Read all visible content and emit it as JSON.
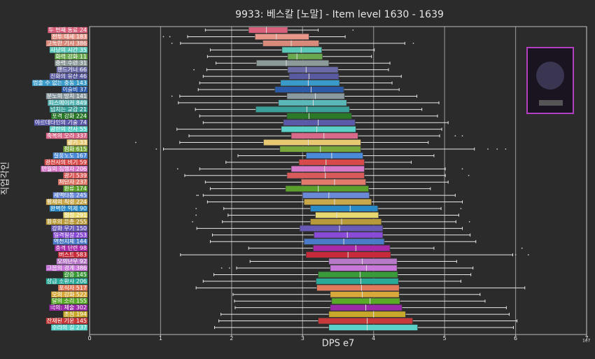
{
  "chart_data": {
    "type": "box",
    "orientation": "horizontal",
    "title": "9933: 베스칼 [노말] - Item level 1630 - 1639",
    "xlabel": "DPS e7",
    "ylabel": "직업각인",
    "offset_label": "1e7",
    "xlim": [
      0,
      7
    ],
    "xticks": [
      0,
      1,
      2,
      3,
      4,
      5,
      6,
      7
    ],
    "grid": true,
    "boxes": [
      {
        "label": "두 번째 동료 24",
        "color": "#d9607a",
        "whisker_low": 1.63,
        "q1": 2.24,
        "median": 2.49,
        "q3": 2.79,
        "whisker_high": 3.22,
        "outliers": [
          3.71
        ]
      },
      {
        "label": "전투 태세 183",
        "color": "#e8968a",
        "whisker_low": 1.38,
        "q1": 2.33,
        "median": 2.63,
        "q3": 3.09,
        "whisker_high": 3.6,
        "outliers": [
          1.04,
          1.13
        ]
      },
      {
        "label": "고독한 기사 386",
        "color": "#d98a7a",
        "whisker_low": 1.28,
        "q1": 2.44,
        "median": 2.84,
        "q3": 3.23,
        "whisker_high": 4.44,
        "outliers": [
          1.16,
          4.56
        ]
      },
      {
        "label": "사냥의 시간 35",
        "color": "#5cc8b8",
        "whisker_low": 1.7,
        "q1": 2.71,
        "median": 2.98,
        "q3": 3.27,
        "whisker_high": 4.01,
        "outliers": []
      },
      {
        "label": "화력 강화 11",
        "color": "#6aa84f",
        "whisker_low": 1.66,
        "q1": 2.79,
        "median": 2.92,
        "q3": 3.28,
        "whisker_high": 3.97,
        "outliers": []
      },
      {
        "label": "중력 수련 31",
        "color": "#8c9a9a",
        "whisker_low": 1.78,
        "q1": 2.35,
        "median": 2.77,
        "q3": 3.37,
        "whisker_high": 4.23,
        "outliers": []
      },
      {
        "label": "핸드거너 66",
        "color": "#6a6aa8",
        "whisker_low": 1.65,
        "q1": 2.79,
        "median": 3.05,
        "q3": 3.5,
        "whisker_high": 4.21,
        "outliers": [
          1.47
        ]
      },
      {
        "label": "진화의 유산 46",
        "color": "#5a5aa0",
        "whisker_low": 1.6,
        "q1": 2.81,
        "median": 3.09,
        "q3": 3.51,
        "whisker_high": 4.39,
        "outliers": []
      },
      {
        "label": "멈출 수 없는 충동 143",
        "color": "#3a9ac9",
        "whisker_low": 1.55,
        "q1": 2.69,
        "median": 3.08,
        "q3": 3.52,
        "whisker_high": 4.26,
        "outliers": []
      },
      {
        "label": "이슬비 37",
        "color": "#2a5aa8",
        "whisker_low": 1.53,
        "q1": 2.61,
        "median": 3.12,
        "q3": 3.58,
        "whisker_high": 4.36,
        "outliers": []
      },
      {
        "label": "분노의 망치 141",
        "color": "#8a9aa0",
        "whisker_low": 1.27,
        "q1": 2.78,
        "median": 3.18,
        "q3": 3.59,
        "whisker_high": 4.61,
        "outliers": [
          1.16
        ]
      },
      {
        "label": "피스메이커 849",
        "color": "#5ab8b8",
        "whisker_low": 1.25,
        "q1": 2.66,
        "median": 3.15,
        "q3": 3.62,
        "whisker_high": 4.92,
        "outliers": []
      },
      {
        "label": "넘치는 교감 21",
        "color": "#3aa09a",
        "whisker_low": 1.49,
        "q1": 2.34,
        "median": 3.06,
        "q3": 3.66,
        "whisker_high": 4.68,
        "outliers": []
      },
      {
        "label": "포격 강화 224",
        "color": "#2a7a2a",
        "whisker_low": 1.55,
        "q1": 2.78,
        "median": 3.09,
        "q3": 3.69,
        "whisker_high": 4.9,
        "outliers": []
      },
      {
        "label": "아르데타인의 기술 74",
        "color": "#5a5aa8",
        "whisker_low": 1.6,
        "q1": 2.73,
        "median": 3.22,
        "q3": 3.74,
        "whisker_high": 5.05,
        "outliers": []
      },
      {
        "label": "광란의 전사 55",
        "color": "#5ad0c8",
        "whisker_low": 1.23,
        "q1": 2.7,
        "median": 3.2,
        "q3": 3.75,
        "whisker_high": 4.96,
        "outliers": []
      },
      {
        "label": "축복의 오라 337",
        "color": "#d96a8a",
        "whisker_low": 1.4,
        "q1": 2.84,
        "median": 3.3,
        "q3": 3.78,
        "whisker_high": 4.93,
        "outliers": [
          5.15,
          5.25
        ]
      },
      {
        "label": "광기 33",
        "color": "#e8c870",
        "whisker_low": 1.27,
        "q1": 2.45,
        "median": 3.08,
        "q3": 3.82,
        "whisker_high": 4.77,
        "outliers": [
          0.65
        ]
      },
      {
        "label": "점화 615",
        "color": "#7aa83a",
        "whisker_low": 1.04,
        "q1": 2.68,
        "median": 3.25,
        "q3": 3.82,
        "whisker_high": 5.42,
        "outliers": [
          0.94,
          5.61,
          5.74,
          5.86
        ]
      },
      {
        "label": "질풍노도 167",
        "color": "#4a8ad8",
        "whisker_low": 2.09,
        "q1": 3.05,
        "median": 3.41,
        "q3": 3.85,
        "whisker_high": 4.85,
        "outliers": []
      },
      {
        "label": "광전사의 비기 59",
        "color": "#d84a4a",
        "whisker_low": 1.92,
        "q1": 2.95,
        "median": 3.33,
        "q3": 3.87,
        "whisker_high": 4.53,
        "outliers": []
      },
      {
        "label": "만월의 집행자 206",
        "color": "#d878c8",
        "whisker_low": 1.55,
        "q1": 2.84,
        "median": 3.31,
        "q3": 3.87,
        "whisker_high": 5.01,
        "outliers": [
          1.24,
          5.25
        ]
      },
      {
        "label": "광기 539",
        "color": "#d85a5a",
        "whisker_low": 1.34,
        "q1": 2.78,
        "median": 3.32,
        "q3": 3.87,
        "whisker_high": 5.01,
        "outliers": [
          5.34
        ]
      },
      {
        "label": "처단자 237",
        "color": "#e07a6a",
        "whisker_low": 1.63,
        "q1": 2.98,
        "median": 3.45,
        "q3": 3.89,
        "whisker_high": 5.05,
        "outliers": []
      },
      {
        "label": "환류 174",
        "color": "#5aa02a",
        "whisker_low": 1.7,
        "q1": 2.76,
        "median": 3.22,
        "q3": 3.93,
        "whisker_high": 4.8,
        "outliers": []
      },
      {
        "label": "세맥타통 245",
        "color": "#6a8ad8",
        "whisker_low": 1.6,
        "q1": 3.0,
        "median": 3.37,
        "q3": 3.94,
        "whisker_high": 5.15,
        "outliers": [
          1.51,
          1.53
        ]
      },
      {
        "label": "황제의 칙령 224",
        "color": "#c8a84a",
        "whisker_low": 1.66,
        "q1": 3.02,
        "median": 3.45,
        "q3": 3.97,
        "whisker_high": 5.25,
        "outliers": []
      },
      {
        "label": "완벽한 억제 90",
        "color": "#2a8ac8",
        "whisker_low": 1.89,
        "q1": 3.11,
        "median": 3.67,
        "q3": 4.06,
        "whisker_high": 4.95,
        "outliers": [
          1.5,
          5.23
        ]
      },
      {
        "label": "절정 291",
        "color": "#e8d870",
        "whisker_low": 1.95,
        "q1": 3.18,
        "median": 3.48,
        "q3": 4.07,
        "whisker_high": 5.2,
        "outliers": [
          1.5
        ]
      },
      {
        "label": "황후의 은총 255",
        "color": "#b89a3a",
        "whisker_low": 1.87,
        "q1": 3.11,
        "median": 3.55,
        "q3": 4.11,
        "whisker_high": 5.16,
        "outliers": [
          1.45,
          5.35
        ]
      },
      {
        "label": "강화 무기 150",
        "color": "#6a5ab8",
        "whisker_low": 1.51,
        "q1": 2.96,
        "median": 3.52,
        "q3": 4.13,
        "whisker_high": 5.25,
        "outliers": []
      },
      {
        "label": "일격필살 253",
        "color": "#8a4ad8",
        "whisker_low": 1.73,
        "q1": 3.16,
        "median": 3.63,
        "q3": 4.13,
        "whisker_high": 5.36,
        "outliers": []
      },
      {
        "label": "역천지체 144",
        "color": "#4a7ac8",
        "whisker_low": 1.7,
        "q1": 3.02,
        "median": 3.58,
        "q3": 4.15,
        "whisker_high": 5.44,
        "outliers": []
      },
      {
        "label": "충격 단련 98",
        "color": "#a82aa8",
        "whisker_low": 2.24,
        "q1": 3.15,
        "median": 3.75,
        "q3": 4.23,
        "whisker_high": 4.85,
        "outliers": [
          6.09
        ]
      },
      {
        "label": "버스트 583",
        "color": "#c82a3a",
        "whisker_low": 1.28,
        "q1": 3.05,
        "median": 3.64,
        "q3": 4.24,
        "whisker_high": 5.96,
        "outliers": [
          6.0,
          6.18
        ]
      },
      {
        "label": "오의난무 92",
        "color": "#b87ac8",
        "whisker_low": 2.26,
        "q1": 3.37,
        "median": 3.84,
        "q3": 4.33,
        "whisker_high": 5.17,
        "outliers": []
      },
      {
        "label": "그믐의 경계 386",
        "color": "#c878d8",
        "whisker_low": 2.07,
        "q1": 3.39,
        "median": 3.9,
        "q3": 4.33,
        "whisker_high": 5.4,
        "outliers": [
          1.86,
          1.97
        ]
      },
      {
        "label": "갈증 145",
        "color": "#3a9a3a",
        "whisker_low": 1.75,
        "q1": 3.22,
        "median": 3.81,
        "q3": 4.34,
        "whisker_high": 5.37,
        "outliers": []
      },
      {
        "label": "상급 소환사 206",
        "color": "#2aa898",
        "whisker_low": 1.6,
        "q1": 3.19,
        "median": 3.82,
        "q3": 4.35,
        "whisker_high": 5.23,
        "outliers": []
      },
      {
        "label": "포식자 517",
        "color": "#e07a5a",
        "whisker_low": 1.5,
        "q1": 3.2,
        "median": 3.83,
        "q3": 4.36,
        "whisker_high": 6.13,
        "outliers": []
      },
      {
        "label": "오의 강화 522",
        "color": "#d8a83a",
        "whisker_low": 2.02,
        "q1": 3.39,
        "median": 3.84,
        "q3": 4.36,
        "whisker_high": 5.5,
        "outliers": []
      },
      {
        "label": "달의 소리 155",
        "color": "#5aaa2a",
        "whisker_low": 2.04,
        "q1": 3.41,
        "median": 3.95,
        "q3": 4.37,
        "whisker_high": 5.57,
        "outliers": []
      },
      {
        "label": "극의: 체술 302",
        "color": "#9a2aa8",
        "whisker_low": 2.05,
        "q1": 3.39,
        "median": 3.89,
        "q3": 4.4,
        "whisker_high": 5.87,
        "outliers": []
      },
      {
        "label": "초심 194",
        "color": "#c8a82a",
        "whisker_low": 1.85,
        "q1": 3.37,
        "median": 4.0,
        "q3": 4.45,
        "whisker_high": 5.91,
        "outliers": []
      },
      {
        "label": "잔재된 기운 145",
        "color": "#c83a3a",
        "whisker_low": 1.82,
        "q1": 3.22,
        "median": 3.91,
        "q3": 4.55,
        "whisker_high": 6.02,
        "outliers": []
      },
      {
        "label": "수라의 길 237",
        "color": "#5ad0c8",
        "whisker_low": 1.76,
        "q1": 3.37,
        "median": 3.91,
        "q3": 4.62,
        "whisker_high": 5.97,
        "outliers": []
      }
    ]
  }
}
